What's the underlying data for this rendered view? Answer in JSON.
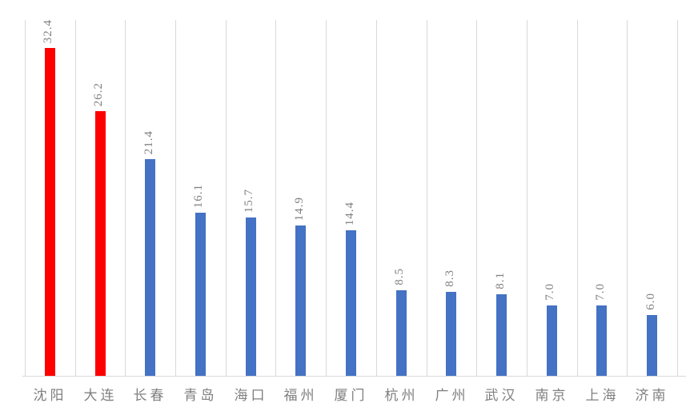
{
  "chart_data": {
    "type": "bar",
    "title": "",
    "xlabel": "",
    "ylabel": "",
    "categories": [
      "沈阳",
      "大连",
      "长春",
      "青岛",
      "海口",
      "福州",
      "厦门",
      "杭州",
      "广州",
      "武汉",
      "南京",
      "上海",
      "济南"
    ],
    "values": [
      32.4,
      26.2,
      21.4,
      16.1,
      15.7,
      14.9,
      14.4,
      8.5,
      8.3,
      8.1,
      7.0,
      7.0,
      6.0
    ],
    "data_labels": [
      "32.4",
      "26.2",
      "21.4",
      "16.1",
      "15.7",
      "14.9",
      "14.4",
      "8.5",
      "8.3",
      "8.1",
      "7.0",
      "7.0",
      "6.0"
    ],
    "data_label_rotation_deg": 90,
    "highlighted_categories": [
      "沈阳",
      "大连"
    ],
    "bar_colors": [
      "#ff0000",
      "#ff0000",
      "#4472c4",
      "#4472c4",
      "#4472c4",
      "#4472c4",
      "#4472c4",
      "#4472c4",
      "#4472c4",
      "#4472c4",
      "#4472c4",
      "#4472c4",
      "#4472c4"
    ],
    "colors": {
      "highlight_bar": "#ff0000",
      "default_bar": "#4472c4",
      "data_label": "#7f7f7f",
      "category_label": "#7f7f7f",
      "gridline": "#d9d9d9",
      "axis_line": "#d9d9d9",
      "background": "#ffffff"
    },
    "ylim": [
      0,
      35
    ],
    "y_axis_labels_visible": false,
    "gridlines": "vertical-at-category-boundaries",
    "legend": "none"
  }
}
